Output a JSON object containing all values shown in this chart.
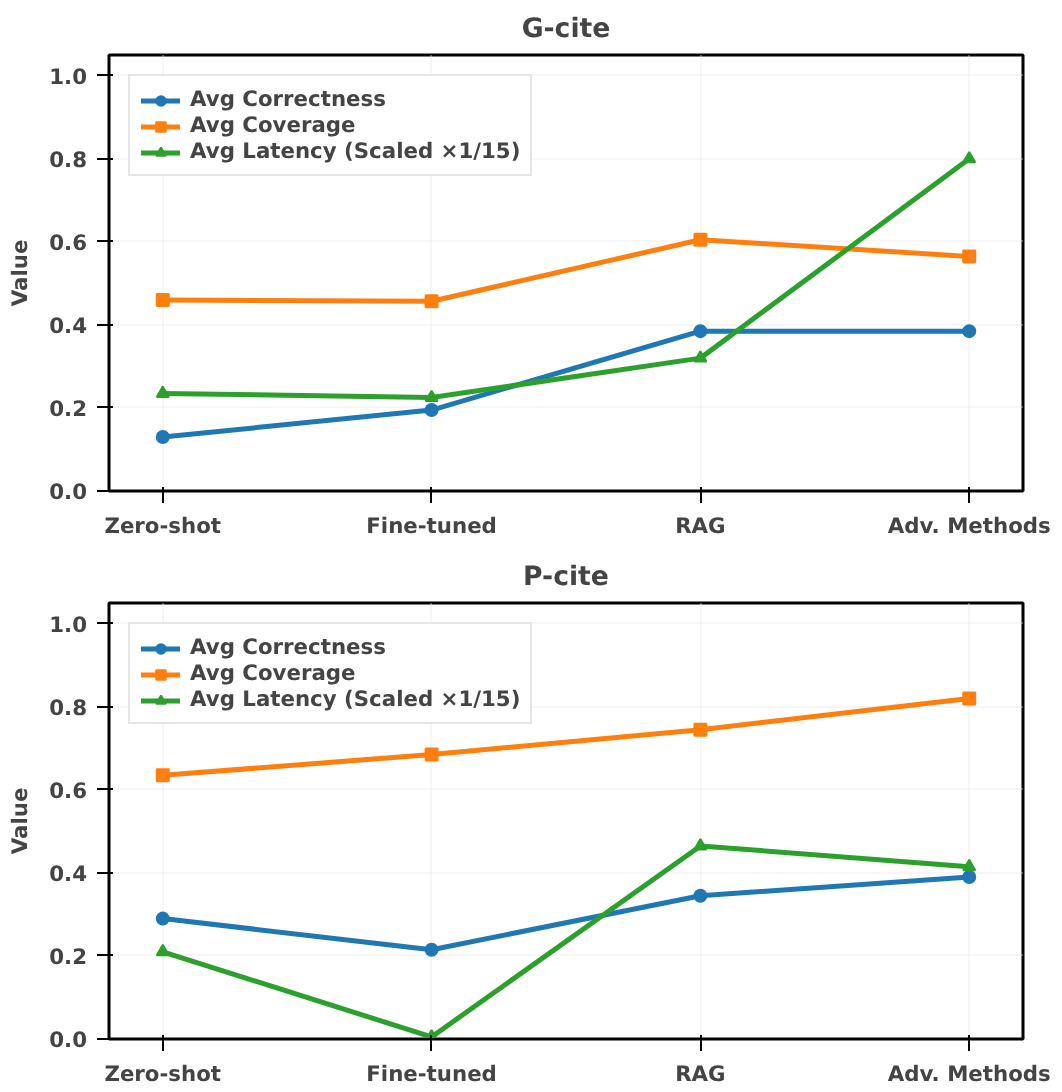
{
  "chart_data": [
    {
      "type": "line",
      "title": "G-cite",
      "ylabel": "Value",
      "categories": [
        "Zero-shot",
        "Fine-tuned",
        "RAG",
        "Adv. Methods"
      ],
      "ylim": [
        0,
        1.05
      ],
      "yticks": [
        {
          "value": 0,
          "label": "0.0"
        },
        {
          "value": 0.2,
          "label": "0.2"
        },
        {
          "value": 0.4,
          "label": "0.4"
        },
        {
          "value": 0.6,
          "label": "0.6"
        },
        {
          "value": 0.8,
          "label": "0.8"
        },
        {
          "value": 1,
          "label": "1.0"
        }
      ],
      "grid": true,
      "legend": "top left",
      "line_style": "solid",
      "series": [
        {
          "name": "Avg Correctness",
          "color": "#1f77b4",
          "marker": "circle",
          "values": [
            0.13,
            0.195,
            0.385,
            0.385
          ]
        },
        {
          "name": "Avg Coverage",
          "color": "#ff7f0e",
          "marker": "square",
          "values": [
            0.46,
            0.457,
            0.605,
            0.565
          ]
        },
        {
          "name": "Avg Latency (Scaled ×1/15)",
          "color": "#2ca02c",
          "marker": "triangle",
          "values": [
            0.235,
            0.225,
            0.32,
            0.8
          ]
        }
      ]
    },
    {
      "type": "line",
      "title": "P-cite",
      "ylabel": "Value",
      "categories": [
        "Zero-shot",
        "Fine-tuned",
        "RAG",
        "Adv. Methods"
      ],
      "ylim": [
        0,
        1.05
      ],
      "yticks": [
        {
          "value": 0,
          "label": "0.0"
        },
        {
          "value": 0.2,
          "label": "0.2"
        },
        {
          "value": 0.4,
          "label": "0.4"
        },
        {
          "value": 0.6,
          "label": "0.6"
        },
        {
          "value": 0.8,
          "label": "0.8"
        },
        {
          "value": 1,
          "label": "1.0"
        }
      ],
      "grid": true,
      "legend": "top left",
      "line_style": "solid",
      "series": [
        {
          "name": "Avg Correctness",
          "color": "#1f77b4",
          "marker": "circle",
          "values": [
            0.29,
            0.215,
            0.345,
            0.39
          ]
        },
        {
          "name": "Avg Coverage",
          "color": "#ff7f0e",
          "marker": "square",
          "values": [
            0.635,
            0.685,
            0.745,
            0.82
          ]
        },
        {
          "name": "Avg Latency (Scaled ×1/15)",
          "color": "#2ca02c",
          "marker": "triangle",
          "values": [
            0.21,
            0.005,
            0.465,
            0.415
          ]
        }
      ]
    }
  ]
}
